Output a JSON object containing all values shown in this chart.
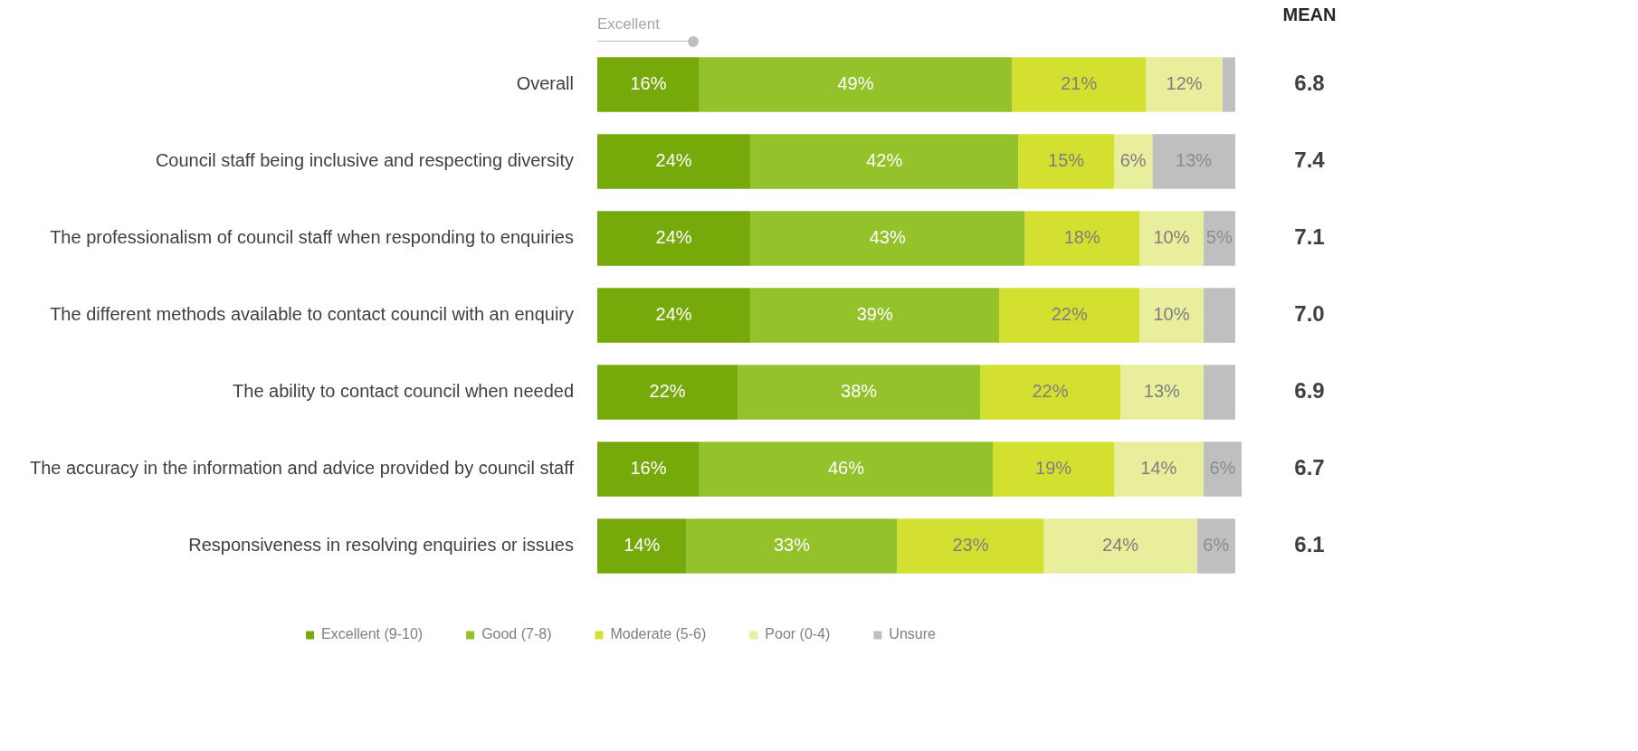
{
  "chart_data": {
    "type": "bar",
    "orientation": "horizontal",
    "stacked": true,
    "categories": [
      "Overall",
      "Council staff being inclusive and respecting diversity",
      "The professionalism of council staff when responding to enquiries",
      "The different methods available to contact council with an enquiry",
      "The ability to contact council when needed",
      "The accuracy in the information and advice provided by council staff",
      "Responsiveness in resolving enquiries or issues"
    ],
    "series": [
      {
        "name": "Excellent (9-10)",
        "color": "#76a90a",
        "values": [
          16,
          24,
          24,
          24,
          22,
          16,
          14
        ],
        "value_labels": [
          "16%",
          "24%",
          "24%",
          "24%",
          "22%",
          "16%",
          "14%"
        ]
      },
      {
        "name": "Good (7-8)",
        "color": "#93c22b",
        "values": [
          49,
          42,
          43,
          39,
          38,
          46,
          33
        ],
        "value_labels": [
          "49%",
          "42%",
          "43%",
          "39%",
          "38%",
          "46%",
          "33%"
        ]
      },
      {
        "name": "Moderate (5-6)",
        "color": "#d4e030",
        "values": [
          21,
          15,
          18,
          22,
          22,
          19,
          23
        ],
        "value_labels": [
          "21%",
          "15%",
          "18%",
          "22%",
          "22%",
          "19%",
          "23%"
        ]
      },
      {
        "name": "Poor (0-4)",
        "color": "#e8ee9c",
        "values": [
          12,
          6,
          10,
          10,
          13,
          14,
          24
        ],
        "value_labels": [
          "12%",
          "6%",
          "10%",
          "10%",
          "13%",
          "14%",
          "24%"
        ]
      },
      {
        "name": "Unsure",
        "color": "#bfbfbf",
        "values": [
          2,
          13,
          5,
          5,
          5,
          6,
          6
        ],
        "value_labels": [
          null,
          "13%",
          "5%",
          null,
          null,
          "6%",
          "6%"
        ]
      }
    ],
    "xlim": [
      0,
      101
    ],
    "tick_labels": "y",
    "legend": "bottom",
    "annotations": [
      "Excellent",
      "MEAN",
      "6.8",
      "7.4",
      "7.1",
      "7.0",
      "6.9",
      "6.7",
      "6.1"
    ]
  }
}
